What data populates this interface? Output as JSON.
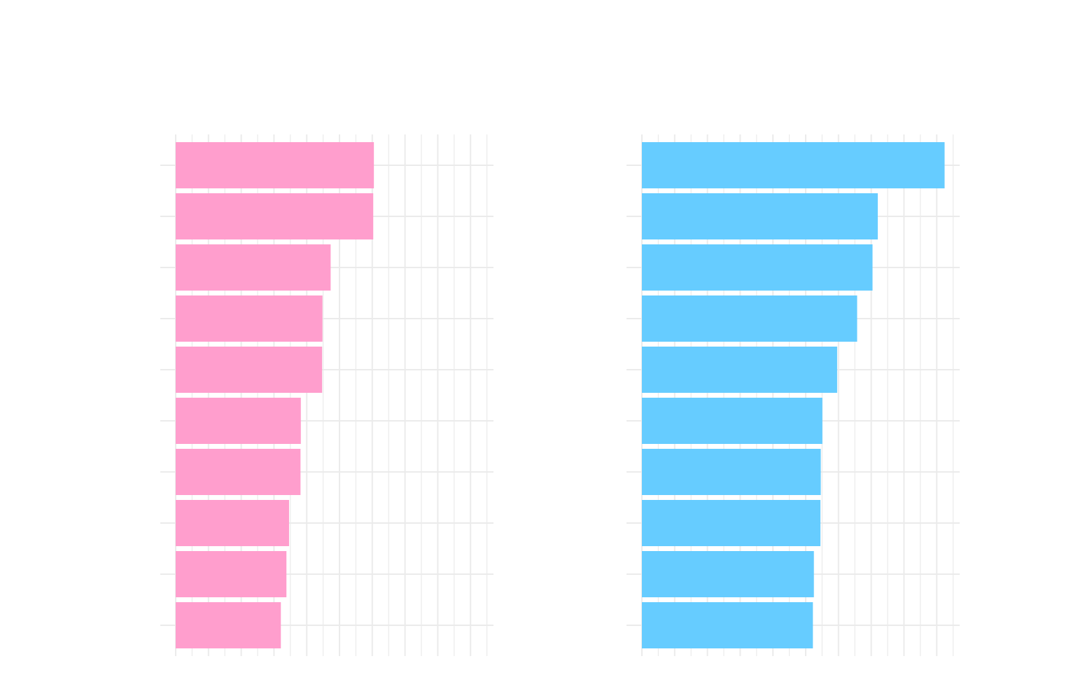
{
  "chart_data": [
    {
      "type": "bar",
      "orientation": "horizontal",
      "color": "#FF9ECD",
      "grid": true,
      "xlim": [
        0,
        9.7
      ],
      "values": [
        6.05,
        6.03,
        4.73,
        4.48,
        4.47,
        3.82,
        3.81,
        3.46,
        3.38,
        3.21
      ],
      "title": "",
      "xlabel": "",
      "ylabel": ""
    },
    {
      "type": "bar",
      "orientation": "horizontal",
      "color": "#66CCFF",
      "grid": true,
      "xlim": [
        0,
        9.7
      ],
      "values": [
        9.24,
        7.2,
        7.04,
        6.57,
        5.96,
        5.51,
        5.46,
        5.45,
        5.25,
        5.22
      ],
      "title": "",
      "xlabel": "",
      "ylabel": ""
    }
  ]
}
